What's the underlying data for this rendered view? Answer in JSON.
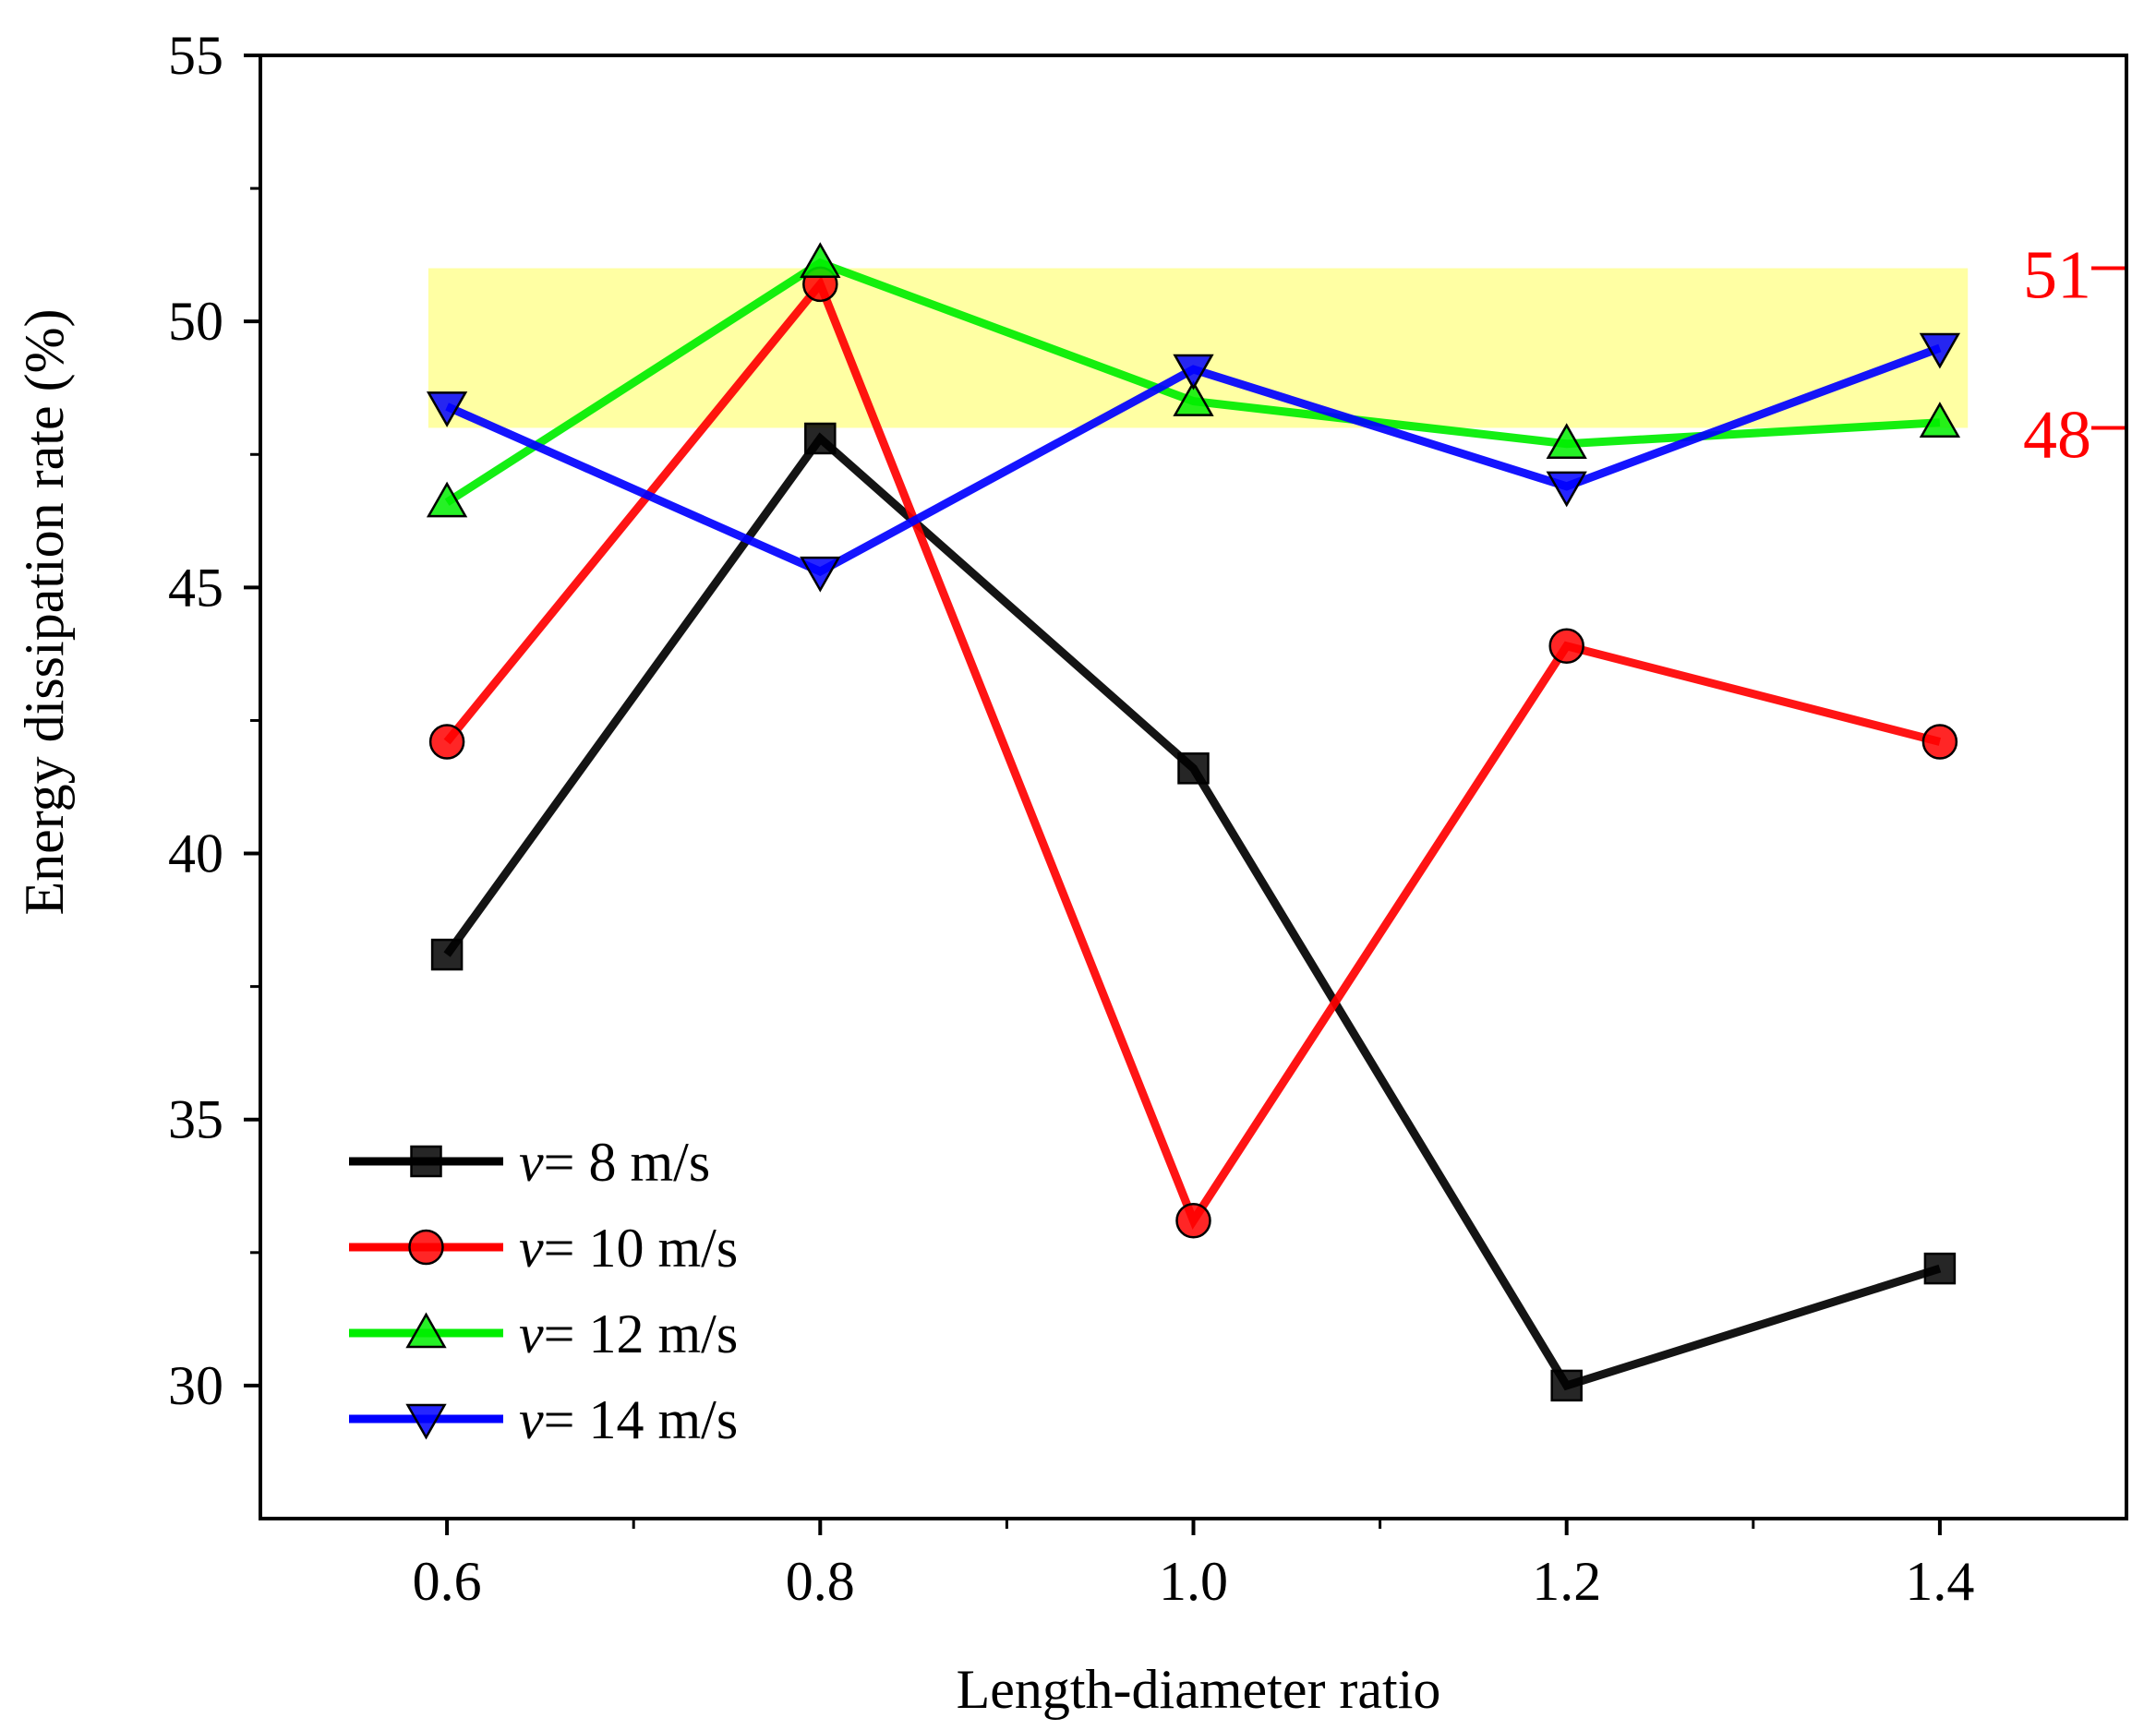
{
  "chart_data": {
    "type": "line",
    "xlabel": "Length-diameter ratio",
    "ylabel": "Energy dissipation rate (%)",
    "x": [
      0.6,
      0.8,
      1.0,
      1.2,
      1.4
    ],
    "x_tick_labels": [
      "0.6",
      "0.8",
      "1.0",
      "1.2",
      "1.4"
    ],
    "xlim": [
      0.5,
      1.5
    ],
    "ylim": [
      27.5,
      55
    ],
    "y_ticks": [
      30,
      35,
      40,
      45,
      50,
      55
    ],
    "y_tick_labels": [
      "30",
      "35",
      "40",
      "45",
      "50",
      "55"
    ],
    "grid": false,
    "legend_position": "bottom-left",
    "series": [
      {
        "name": "v= 8 m/s",
        "legend_var": "v",
        "legend_rest": "= 8 m/s",
        "color": "#000000",
        "marker": "square",
        "values": [
          38.1,
          47.8,
          41.6,
          30.0,
          32.2
        ]
      },
      {
        "name": "v= 10 m/s",
        "legend_var": "v",
        "legend_rest": "= 10 m/s",
        "color": "#ff0000",
        "marker": "circle",
        "values": [
          42.1,
          50.7,
          33.1,
          43.9,
          42.1
        ]
      },
      {
        "name": "v= 12 m/s",
        "legend_var": "v",
        "legend_rest": "= 12 m/s",
        "color": "#00ee00",
        "marker": "triangle-up",
        "values": [
          46.6,
          51.1,
          48.5,
          47.7,
          48.1
        ]
      },
      {
        "name": "v= 14 m/s",
        "legend_var": "v",
        "legend_rest": "= 14 m/s",
        "color": "#0000ff",
        "marker": "triangle-down",
        "values": [
          48.4,
          45.3,
          49.1,
          46.9,
          49.5
        ]
      }
    ],
    "highlight_band": {
      "y_from": 48,
      "y_to": 51,
      "x_from": 0.59,
      "x_to": 1.415,
      "color": "#ffff80"
    },
    "reference_labels": [
      {
        "text": "51",
        "y": 51,
        "color": "#ff0000"
      },
      {
        "text": "48",
        "y": 48,
        "color": "#ff0000"
      }
    ]
  }
}
